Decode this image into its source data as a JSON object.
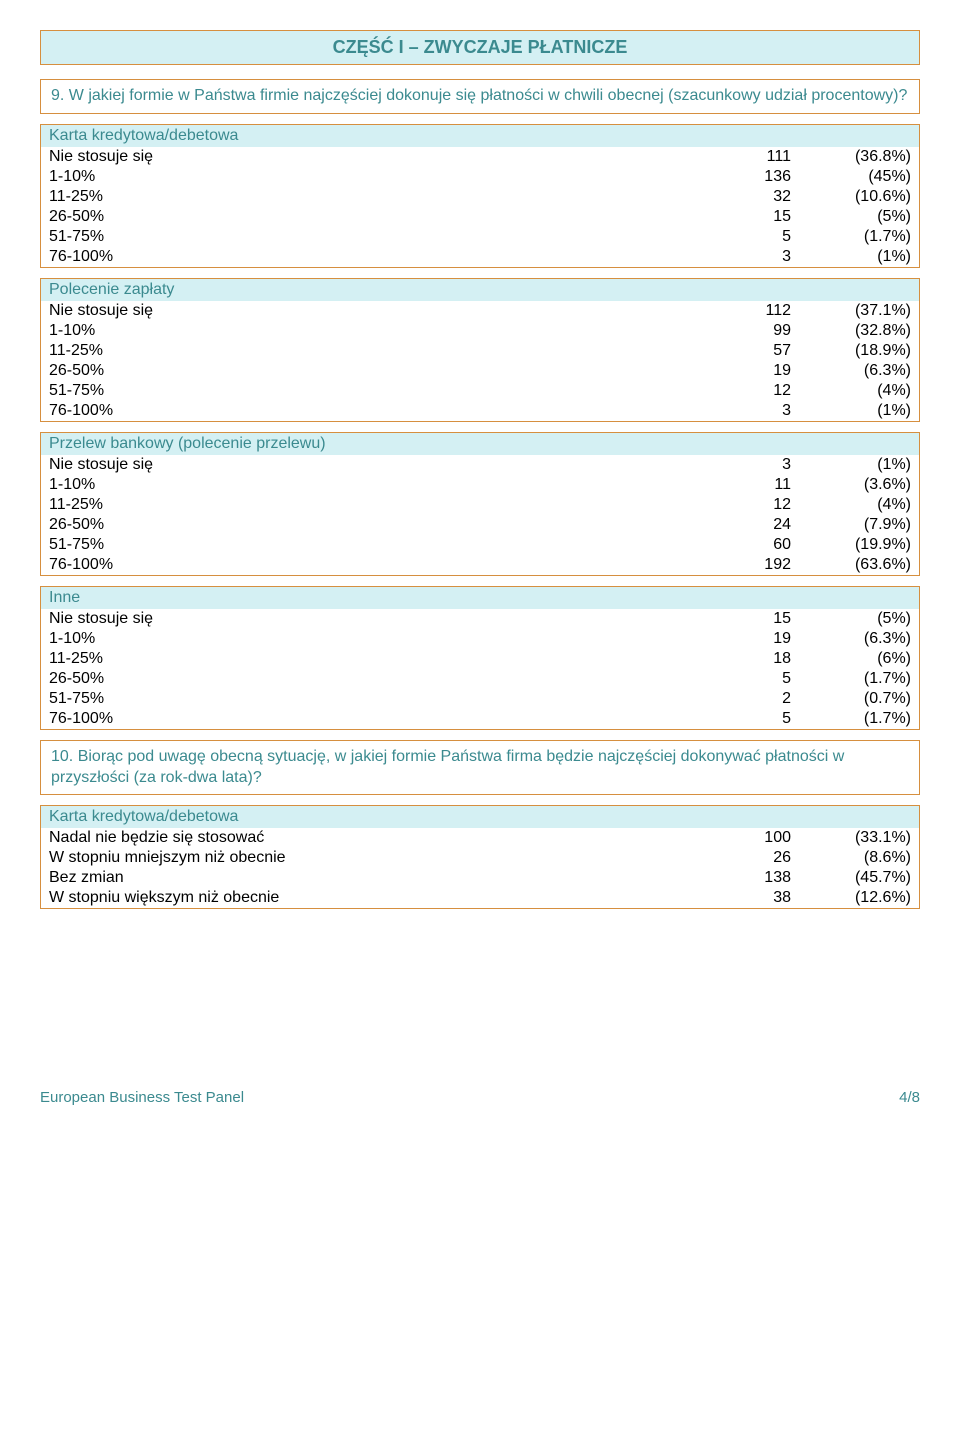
{
  "colors": {
    "border": "#d68f3f",
    "header_bg": "#d4f0f3",
    "teal_text": "#3b8a8f",
    "body_text": "#000000",
    "page_bg": "#ffffff"
  },
  "title": "CZĘŚĆ I – ZWYCZAJE PŁATNICZE",
  "q9": "9. W jakiej formie w Państwa firmie najczęściej dokonuje się płatności w chwili obecnej (szacunkowy udział procentowy)?",
  "g1": {
    "head": "Karta kredytowa/debetowa",
    "rows": [
      {
        "l": "Nie stosuje się",
        "n": "111",
        "p": "(36.8%)"
      },
      {
        "l": "1-10%",
        "n": "136",
        "p": "(45%)"
      },
      {
        "l": "11-25%",
        "n": "32",
        "p": "(10.6%)"
      },
      {
        "l": "26-50%",
        "n": "15",
        "p": "(5%)"
      },
      {
        "l": "51-75%",
        "n": "5",
        "p": "(1.7%)"
      },
      {
        "l": "76-100%",
        "n": "3",
        "p": "(1%)"
      }
    ]
  },
  "g2": {
    "head": "Polecenie zapłaty",
    "rows": [
      {
        "l": "Nie stosuje się",
        "n": "112",
        "p": "(37.1%)"
      },
      {
        "l": "1-10%",
        "n": "99",
        "p": "(32.8%)"
      },
      {
        "l": "11-25%",
        "n": "57",
        "p": "(18.9%)"
      },
      {
        "l": "26-50%",
        "n": "19",
        "p": "(6.3%)"
      },
      {
        "l": "51-75%",
        "n": "12",
        "p": "(4%)"
      },
      {
        "l": "76-100%",
        "n": "3",
        "p": "(1%)"
      }
    ]
  },
  "g3": {
    "head": "Przelew bankowy (polecenie przelewu)",
    "rows": [
      {
        "l": "Nie stosuje się",
        "n": "3",
        "p": "(1%)"
      },
      {
        "l": "1-10%",
        "n": "11",
        "p": "(3.6%)"
      },
      {
        "l": "11-25%",
        "n": "12",
        "p": "(4%)"
      },
      {
        "l": "26-50%",
        "n": "24",
        "p": "(7.9%)"
      },
      {
        "l": "51-75%",
        "n": "60",
        "p": "(19.9%)"
      },
      {
        "l": "76-100%",
        "n": "192",
        "p": "(63.6%)"
      }
    ]
  },
  "g4": {
    "head": "Inne",
    "rows": [
      {
        "l": "Nie stosuje się",
        "n": "15",
        "p": "(5%)"
      },
      {
        "l": "1-10%",
        "n": "19",
        "p": "(6.3%)"
      },
      {
        "l": "11-25%",
        "n": "18",
        "p": "(6%)"
      },
      {
        "l": "26-50%",
        "n": "5",
        "p": "(1.7%)"
      },
      {
        "l": "51-75%",
        "n": "2",
        "p": "(0.7%)"
      },
      {
        "l": "76-100%",
        "n": "5",
        "p": "(1.7%)"
      }
    ]
  },
  "q10": "10. Biorąc pod uwagę obecną sytuację, w jakiej formie Państwa firma będzie najczęściej dokonywać płatności w przyszłości (za rok-dwa lata)?",
  "g5": {
    "head": "Karta kredytowa/debetowa",
    "rows": [
      {
        "l": "Nadal nie będzie się stosować",
        "n": "100",
        "p": "(33.1%)"
      },
      {
        "l": "W stopniu mniejszym niż obecnie",
        "n": "26",
        "p": "(8.6%)"
      },
      {
        "l": "Bez zmian",
        "n": "138",
        "p": "(45.7%)"
      },
      {
        "l": "W stopniu większym niż obecnie",
        "n": "38",
        "p": "(12.6%)"
      }
    ]
  },
  "footer_left": "European Business Test Panel",
  "footer_right": "4/8"
}
